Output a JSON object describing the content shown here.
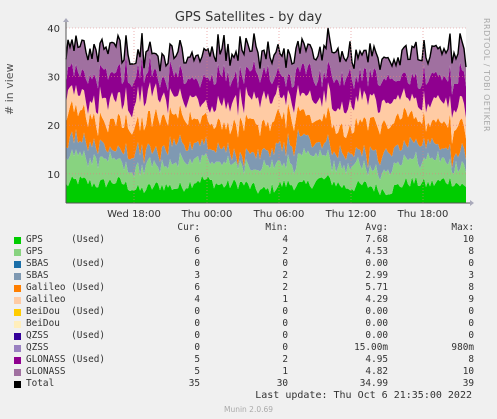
{
  "title": "GPS Satellites - by day",
  "ylabel": "# in view",
  "side_label": "RRDTOOL / TOBI OETIKER",
  "legend_header": {
    "cur": "Cur:",
    "min": "Min:",
    "avg": "Avg:",
    "max": "Max:"
  },
  "rows": [
    {
      "name": "GPS     (Used)",
      "cur": "6",
      "min": "4",
      "avg": "7.68",
      "max": "10",
      "color": "#00cc00"
    },
    {
      "name": "GPS",
      "cur": "6",
      "min": "2",
      "avg": "4.53",
      "max": "8",
      "color": "#88d380"
    },
    {
      "name": "SBAS    (Used)",
      "cur": "0",
      "min": "0",
      "avg": "0.00",
      "max": "0",
      "color": "#1c6fa8"
    },
    {
      "name": "SBAS",
      "cur": "3",
      "min": "2",
      "avg": "2.99",
      "max": "3",
      "color": "#7f99b2"
    },
    {
      "name": "Galileo (Used)",
      "cur": "6",
      "min": "2",
      "avg": "5.71",
      "max": "8",
      "color": "#ff7f00"
    },
    {
      "name": "Galileo",
      "cur": "4",
      "min": "1",
      "avg": "4.29",
      "max": "9",
      "color": "#ffcba4"
    },
    {
      "name": "BeiDou  (Used)",
      "cur": "0",
      "min": "0",
      "avg": "0.00",
      "max": "0",
      "color": "#ffcc00"
    },
    {
      "name": "BeiDou",
      "cur": "0",
      "min": "0",
      "avg": "0.00",
      "max": "0",
      "color": "#ffeebb"
    },
    {
      "name": "QZSS    (Used)",
      "cur": "0",
      "min": "0",
      "avg": "0.00",
      "max": "0",
      "color": "#330099"
    },
    {
      "name": "QZSS",
      "cur": "0",
      "min": "0",
      "avg": "15.00m",
      "max": "980m",
      "color": "#9980c0"
    },
    {
      "name": "GLONASS (Used)",
      "cur": "5",
      "min": "2",
      "avg": "4.95",
      "max": "8",
      "color": "#8f008f"
    },
    {
      "name": "GLONASS",
      "cur": "5",
      "min": "1",
      "avg": "4.82",
      "max": "10",
      "color": "#a070a0"
    },
    {
      "name": "Total",
      "cur": "35",
      "min": "30",
      "avg": "34.99",
      "max": "39",
      "color": "#000000"
    }
  ],
  "last_update": "Last update: Thu Oct  6 21:35:00 2022",
  "footer": "Munin 2.0.69",
  "chart_data": {
    "type": "area",
    "title": "GPS Satellites - by day",
    "ylabel": "# in view",
    "ylim": [
      4,
      40
    ],
    "yticks": [
      10,
      20,
      30,
      40
    ],
    "xticks": [
      "Wed 18:00",
      "Thu 00:00",
      "Thu 06:00",
      "Thu 12:00",
      "Thu 18:00"
    ],
    "stacked": true,
    "grid": true,
    "series": [
      {
        "name": "GPS (Used)",
        "color": "#00cc00",
        "level": 7.7
      },
      {
        "name": "GPS",
        "color": "#88d380",
        "level": 4.5
      },
      {
        "name": "SBAS (Used)",
        "color": "#1c6fa8",
        "level": 0
      },
      {
        "name": "SBAS",
        "color": "#7f99b2",
        "level": 3.0
      },
      {
        "name": "Galileo (Used)",
        "color": "#ff7f00",
        "level": 5.7
      },
      {
        "name": "Galileo",
        "color": "#ffcba4",
        "level": 4.3
      },
      {
        "name": "BeiDou (Used)",
        "color": "#ffcc00",
        "level": 0
      },
      {
        "name": "BeiDou",
        "color": "#ffeebb",
        "level": 0
      },
      {
        "name": "QZSS (Used)",
        "color": "#330099",
        "level": 0
      },
      {
        "name": "QZSS",
        "color": "#9980c0",
        "level": 0
      },
      {
        "name": "GLONASS (Used)",
        "color": "#8f008f",
        "level": 4.95
      },
      {
        "name": "GLONASS",
        "color": "#a070a0",
        "level": 4.8
      }
    ],
    "total_avg": 34.99
  }
}
